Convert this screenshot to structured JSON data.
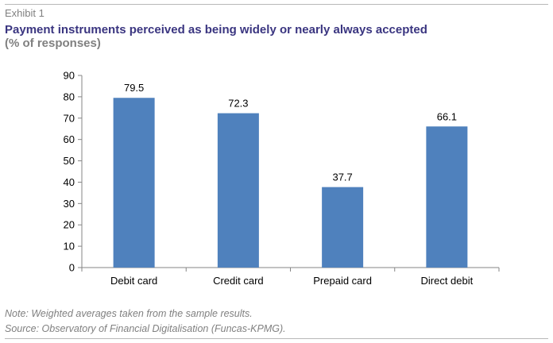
{
  "header": {
    "exhibit": "Exhibit 1",
    "title": "Payment instruments perceived as being widely or nearly always accepted",
    "subtitle": "(% of responses)"
  },
  "footer": {
    "note": "Note: Weighted averages taken from the sample results.",
    "source": "Source: Observatory of Financial Digitalisation (Funcas-KPMG)."
  },
  "colors": {
    "bar": "#4f81bd",
    "title": "#3a3580",
    "muted": "#808080"
  },
  "chart_data": {
    "type": "bar",
    "categories": [
      "Debit card",
      "Credit card",
      "Prepaid card",
      "Direct debit"
    ],
    "values": [
      79.5,
      72.3,
      37.7,
      66.1
    ],
    "value_labels": [
      "79.5",
      "72.3",
      "37.7",
      "66.1"
    ],
    "ylim": [
      0,
      90
    ],
    "yticks": [
      0,
      10,
      20,
      30,
      40,
      50,
      60,
      70,
      80,
      90
    ],
    "grid": false,
    "legend": "none"
  }
}
